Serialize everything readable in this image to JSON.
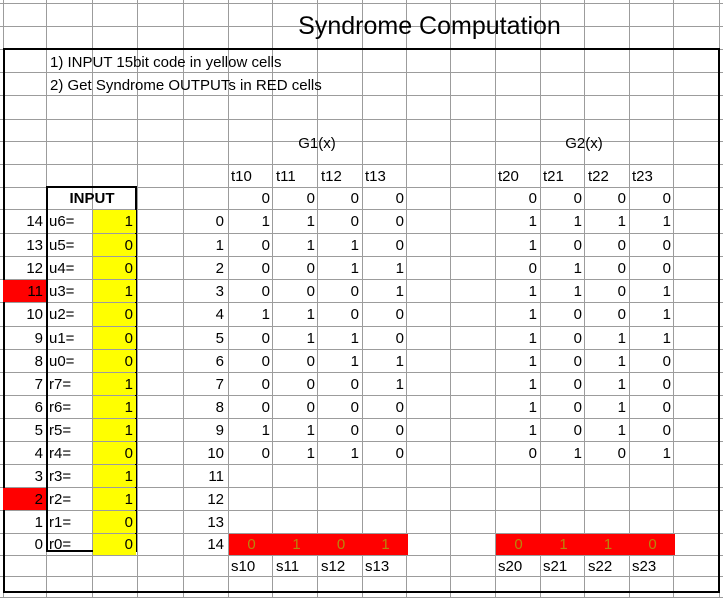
{
  "title": "Syndrome Computation",
  "instructions": [
    "1) INPUT 15bit code in yellow cells",
    "2) Get Syndrome OUTPUTs in RED cells"
  ],
  "colors": {
    "input": "#ffff00",
    "output": "#ff0000",
    "error_marker": "#ff0000"
  },
  "input": {
    "header": "INPUT",
    "rows": [
      {
        "index": "14",
        "label": "u6=",
        "value": "1",
        "flagged": false
      },
      {
        "index": "13",
        "label": "u5=",
        "value": "0",
        "flagged": false
      },
      {
        "index": "12",
        "label": "u4=",
        "value": "0",
        "flagged": false
      },
      {
        "index": "11",
        "label": "u3=",
        "value": "1",
        "flagged": true
      },
      {
        "index": "10",
        "label": "u2=",
        "value": "0",
        "flagged": false
      },
      {
        "index": "9",
        "label": "u1=",
        "value": "0",
        "flagged": false
      },
      {
        "index": "8",
        "label": "u0=",
        "value": "0",
        "flagged": false
      },
      {
        "index": "7",
        "label": "r7=",
        "value": "1",
        "flagged": false
      },
      {
        "index": "6",
        "label": "r6=",
        "value": "1",
        "flagged": false
      },
      {
        "index": "5",
        "label": "r5=",
        "value": "1",
        "flagged": false
      },
      {
        "index": "4",
        "label": "r4=",
        "value": "0",
        "flagged": false
      },
      {
        "index": "3",
        "label": "r3=",
        "value": "1",
        "flagged": false
      },
      {
        "index": "2",
        "label": "r2=",
        "value": "1",
        "flagged": true
      },
      {
        "index": "1",
        "label": "r1=",
        "value": "0",
        "flagged": false
      },
      {
        "index": "0",
        "label": "r0=",
        "value": "0",
        "flagged": false
      }
    ]
  },
  "steps": [
    "0",
    "1",
    "2",
    "3",
    "4",
    "5",
    "6",
    "7",
    "8",
    "9",
    "10",
    "11",
    "12",
    "13",
    "14"
  ],
  "g1": {
    "title": "G1(x)",
    "headers": [
      "t10",
      "t11",
      "t12",
      "t13"
    ],
    "rows": [
      [
        "0",
        "0",
        "0",
        "0"
      ],
      [
        "1",
        "1",
        "0",
        "0"
      ],
      [
        "0",
        "1",
        "1",
        "0"
      ],
      [
        "0",
        "0",
        "1",
        "1"
      ],
      [
        "0",
        "0",
        "0",
        "1"
      ],
      [
        "1",
        "1",
        "0",
        "0"
      ],
      [
        "0",
        "1",
        "1",
        "0"
      ],
      [
        "0",
        "0",
        "1",
        "1"
      ],
      [
        "0",
        "0",
        "0",
        "1"
      ],
      [
        "0",
        "0",
        "0",
        "0"
      ],
      [
        "1",
        "1",
        "0",
        "0"
      ],
      [
        "0",
        "1",
        "1",
        "0"
      ]
    ],
    "outputs": [
      "0",
      "1",
      "0",
      "1"
    ],
    "output_labels": [
      "s10",
      "s11",
      "s12",
      "s13"
    ]
  },
  "g2": {
    "title": "G2(x)",
    "headers": [
      "t20",
      "t21",
      "t22",
      "t23"
    ],
    "rows": [
      [
        "0",
        "0",
        "0",
        "0"
      ],
      [
        "1",
        "1",
        "1",
        "1"
      ],
      [
        "1",
        "0",
        "0",
        "0"
      ],
      [
        "0",
        "1",
        "0",
        "0"
      ],
      [
        "1",
        "1",
        "0",
        "1"
      ],
      [
        "1",
        "0",
        "0",
        "1"
      ],
      [
        "1",
        "0",
        "1",
        "1"
      ],
      [
        "1",
        "0",
        "1",
        "0"
      ],
      [
        "1",
        "0",
        "1",
        "0"
      ],
      [
        "1",
        "0",
        "1",
        "0"
      ],
      [
        "1",
        "0",
        "1",
        "0"
      ],
      [
        "0",
        "1",
        "0",
        "1"
      ]
    ],
    "outputs": [
      "0",
      "1",
      "1",
      "0"
    ],
    "output_labels": [
      "s20",
      "s21",
      "s22",
      "s23"
    ]
  }
}
